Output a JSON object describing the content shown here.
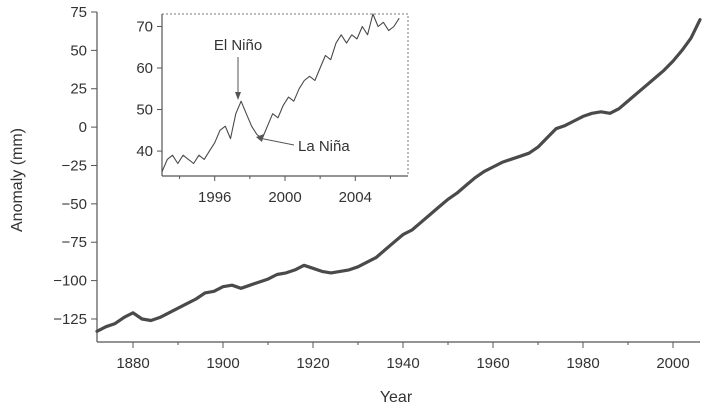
{
  "chart_data": [
    {
      "type": "line",
      "title": "",
      "xlabel": "Year",
      "ylabel": "Anomaly (mm)",
      "xlim": [
        1872,
        2006
      ],
      "ylim": [
        -140,
        75
      ],
      "x_ticks": [
        1880,
        1900,
        1920,
        1940,
        1960,
        1980,
        2000
      ],
      "y_ticks": [
        75,
        50,
        25,
        0,
        -25,
        -50,
        -75,
        -100,
        -125
      ],
      "grid": false,
      "series": [
        {
          "x": [
            1872,
            1874,
            1876,
            1878,
            1880,
            1882,
            1884,
            1886,
            1888,
            1890,
            1892,
            1894,
            1896,
            1898,
            1900,
            1902,
            1904,
            1906,
            1908,
            1910,
            1912,
            1914,
            1916,
            1918,
            1920,
            1922,
            1924,
            1926,
            1928,
            1930,
            1932,
            1934,
            1936,
            1938,
            1940,
            1942,
            1944,
            1946,
            1948,
            1950,
            1952,
            1954,
            1956,
            1958,
            1960,
            1962,
            1964,
            1966,
            1968,
            1970,
            1972,
            1974,
            1976,
            1978,
            1980,
            1982,
            1984,
            1986,
            1988,
            1990,
            1992,
            1994,
            1996,
            1998,
            2000,
            2002,
            2004,
            2006
          ],
          "values": [
            -133,
            -130,
            -128,
            -124,
            -121,
            -125,
            -126,
            -124,
            -121,
            -118,
            -115,
            -112,
            -108,
            -107,
            -104,
            -103,
            -105,
            -103,
            -101,
            -99,
            -96,
            -95,
            -93,
            -90,
            -92,
            -94,
            -95,
            -94,
            -93,
            -91,
            -88,
            -85,
            -80,
            -75,
            -70,
            -67,
            -62,
            -57,
            -52,
            -47,
            -43,
            -38,
            -33,
            -29,
            -26,
            -23,
            -21,
            -19,
            -17,
            -13,
            -7,
            -1,
            1,
            4,
            7,
            9,
            10,
            9,
            12,
            17,
            22,
            27,
            32,
            37,
            43,
            50,
            58,
            70
          ]
        }
      ]
    },
    {
      "type": "line",
      "title": "",
      "xlabel": "",
      "ylabel": "",
      "xlim": [
        1993,
        2007
      ],
      "ylim": [
        34,
        73
      ],
      "x_ticks": [
        1996,
        2000,
        2004
      ],
      "y_ticks": [
        70,
        60,
        50,
        40
      ],
      "grid": false,
      "annotations": [
        {
          "text": "El Niño",
          "x": 1997.5,
          "y": 52
        },
        {
          "text": "La Niña",
          "x": 1998.6,
          "y": 43
        }
      ],
      "series": [
        {
          "x": [
            1993,
            1993.3,
            1993.6,
            1993.9,
            1994.2,
            1994.5,
            1994.8,
            1995.1,
            1995.4,
            1995.7,
            1996,
            1996.3,
            1996.6,
            1996.9,
            1997.2,
            1997.5,
            1997.8,
            1998.1,
            1998.4,
            1998.7,
            1999,
            1999.3,
            1999.6,
            1999.9,
            2000.2,
            2000.5,
            2000.8,
            2001.1,
            2001.4,
            2001.7,
            2002,
            2002.3,
            2002.6,
            2002.9,
            2003.2,
            2003.5,
            2003.8,
            2004.1,
            2004.4,
            2004.7,
            2005,
            2005.3,
            2005.6,
            2005.9,
            2006.2,
            2006.5
          ],
          "values": [
            35,
            38,
            39,
            37,
            39,
            38,
            37,
            39,
            38,
            40,
            42,
            45,
            46,
            43,
            49,
            52,
            49,
            46,
            44,
            43,
            46,
            49,
            48,
            51,
            53,
            52,
            55,
            57,
            58,
            57,
            60,
            63,
            62,
            66,
            68,
            66,
            68,
            67,
            70,
            68,
            73,
            70,
            71,
            69,
            70,
            72
          ]
        }
      ]
    }
  ]
}
